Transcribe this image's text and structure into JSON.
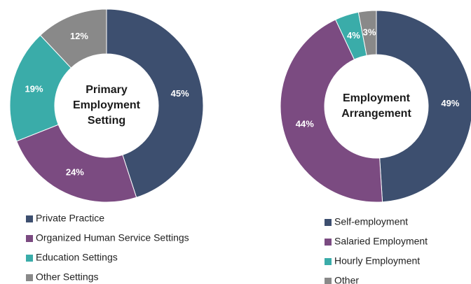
{
  "chart_data": [
    {
      "type": "pie",
      "title": "Primary Employment Setting",
      "categories": [
        "Private Practice",
        "Organized Human Service Settings",
        "Education Settings",
        "Other Settings"
      ],
      "values": [
        45,
        24,
        19,
        12
      ],
      "value_labels": [
        "45%",
        "24%",
        "19%",
        "12%"
      ],
      "colors": [
        "#3d4f6f",
        "#7b4b81",
        "#3aaca9",
        "#898989"
      ]
    },
    {
      "type": "pie",
      "title": "Employment Arrangement",
      "categories": [
        "Self-employment",
        "Salaried Employment",
        "Hourly Employment",
        "Other"
      ],
      "values": [
        49,
        44,
        4,
        3
      ],
      "value_labels": [
        "49%",
        "44%",
        "4%",
        "3%"
      ],
      "colors": [
        "#3d4f6f",
        "#7b4b81",
        "#3aaca9",
        "#898989"
      ]
    }
  ]
}
